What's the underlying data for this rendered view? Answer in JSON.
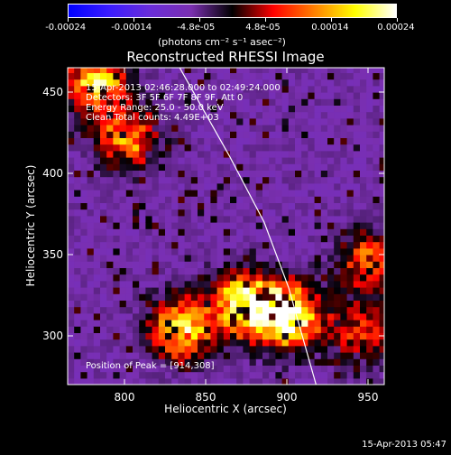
{
  "colorbar": {
    "ticks": [
      "-0.00024",
      "-0.00014",
      "-4.8e-05",
      "4.8e-05",
      "0.00014",
      "0.00024"
    ],
    "unit_label": "(photons cm⁻² s⁻¹ asec⁻²)",
    "stops": [
      "#0000ff",
      "#3b1cff",
      "#6a2dd8",
      "#7a2fb0",
      "#000000",
      "#ff0000",
      "#ff7f00",
      "#ffff00",
      "#ffffff"
    ]
  },
  "chart_data": {
    "type": "heatmap",
    "title": "Reconstructed RHESSI Image",
    "xlabel": "Heliocentric X (arcsec)",
    "ylabel": "Heliocentric Y (arcsec)",
    "xlim": [
      765,
      960
    ],
    "ylim": [
      270,
      465
    ],
    "xticks": [
      800,
      850,
      900,
      950
    ],
    "yticks": [
      300,
      350,
      400,
      450
    ],
    "annotations": {
      "time_range": "15-Apr-2013 02:46:28.000 to 02:49:24.000",
      "detectors": "Detectors: 3F 5F 6F 7F 8F 9F, Att 0",
      "energy": "Energy Range: 25.0 - 50.0 keV",
      "clean": "Clean     Total counts: 4.49E+03",
      "peak": "Position of Peak = [914,308]"
    },
    "peak": [
      914,
      308
    ],
    "limb_curve": [
      [
        834,
        465
      ],
      [
        865,
        410
      ],
      [
        886,
        370
      ],
      [
        901,
        330
      ],
      [
        918,
        270
      ]
    ],
    "bright_regions": [
      {
        "x": 900,
        "y": 310,
        "strength": 1.0
      },
      {
        "x": 872,
        "y": 318,
        "strength": 0.85
      },
      {
        "x": 833,
        "y": 303,
        "strength": 0.8
      },
      {
        "x": 780,
        "y": 455,
        "strength": 0.75
      },
      {
        "x": 800,
        "y": 420,
        "strength": 0.6
      },
      {
        "x": 950,
        "y": 345,
        "strength": 0.55
      },
      {
        "x": 945,
        "y": 300,
        "strength": 0.45
      }
    ]
  },
  "timestamp": "15-Apr-2013 05:47"
}
